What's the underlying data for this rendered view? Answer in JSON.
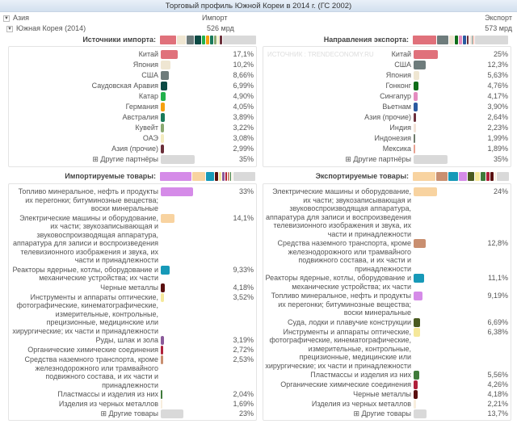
{
  "title": "Торговый профиль Южной Кореи в 2014 г. (ГС 2002)",
  "tree": {
    "region": "Азия",
    "country": "Южная Корея (2014)"
  },
  "import": {
    "header": "Импорт",
    "total": "526 мрд"
  },
  "export": {
    "header": "Экспорт",
    "total": "573 мрд"
  },
  "watermark": "ИСТОЧНИК : TRENDECONOMY.RU",
  "colors": {
    "other": "#d9d9d9"
  },
  "import_partners": {
    "title": "Источники импорта:",
    "rows": [
      {
        "label": "Китай",
        "pct": "17,1%",
        "value": 17.1,
        "color": "#e0717b"
      },
      {
        "label": "Япония",
        "pct": "10,2%",
        "value": 10.2,
        "color": "#efe6d2"
      },
      {
        "label": "США",
        "pct": "8,66%",
        "value": 8.66,
        "color": "#6e7c7c"
      },
      {
        "label": "Саудовская Аравия",
        "pct": "6,99%",
        "value": 6.99,
        "color": "#0b4a44"
      },
      {
        "label": "Катар",
        "pct": "4,90%",
        "value": 4.9,
        "color": "#22b14c"
      },
      {
        "label": "Германия",
        "pct": "4,05%",
        "value": 4.05,
        "color": "#f5a00f"
      },
      {
        "label": "Австралия",
        "pct": "3,89%",
        "value": 3.89,
        "color": "#1a7a5a"
      },
      {
        "label": "Кувейт",
        "pct": "3,22%",
        "value": 3.22,
        "color": "#8aa870"
      },
      {
        "label": "ОАЭ",
        "pct": "3,08%",
        "value": 3.08,
        "color": "#f3ebbf"
      },
      {
        "label": "Азия (прочие)",
        "pct": "2,99%",
        "value": 2.99,
        "color": "#6b2e3a"
      },
      {
        "label": "⊞ Другие партнёры",
        "pct": "35%",
        "value": 35,
        "color": "#d9d9d9"
      }
    ]
  },
  "export_partners": {
    "title": "Направления экспорта:",
    "rows": [
      {
        "label": "Китай",
        "pct": "25%",
        "value": 25,
        "color": "#e0717b"
      },
      {
        "label": "США",
        "pct": "12,3%",
        "value": 12.3,
        "color": "#6e7c7c"
      },
      {
        "label": "Япония",
        "pct": "5,63%",
        "value": 5.63,
        "color": "#efe6d2"
      },
      {
        "label": "Гонконг",
        "pct": "4,76%",
        "value": 4.76,
        "color": "#0f6e1a"
      },
      {
        "label": "Сингапур",
        "pct": "4,17%",
        "value": 4.17,
        "color": "#e48bbf"
      },
      {
        "label": "Вьетнам",
        "pct": "3,90%",
        "value": 3.9,
        "color": "#2a5aa0"
      },
      {
        "label": "Азия (прочие)",
        "pct": "2,64%",
        "value": 2.64,
        "color": "#6b2e3a"
      },
      {
        "label": "Индия",
        "pct": "2,23%",
        "value": 2.23,
        "color": "#f3e3d8"
      },
      {
        "label": "Индонезия",
        "pct": "1,99%",
        "value": 1.99,
        "color": "#6e7b6b"
      },
      {
        "label": "Мексика",
        "pct": "1,89%",
        "value": 1.89,
        "color": "#e8a090"
      },
      {
        "label": "⊞ Другие партнёры",
        "pct": "35%",
        "value": 35,
        "color": "#d9d9d9"
      }
    ]
  },
  "import_goods": {
    "title": "Импортируемые товары:",
    "rows": [
      {
        "label": "Топливо минеральное, нефть и продукты их перегонки; битуминозные вещества; воски минеральные",
        "pct": "33%",
        "value": 33,
        "color": "#d58be8"
      },
      {
        "label": "Электрические машины и оборудование, их части; звукозаписывающая и звуковоспроизводящая аппаратура, аппаратура для записи и воспроизведения телевизионного изображения и звука, их части и принадлежности",
        "pct": "14,1%",
        "value": 14.1,
        "color": "#f8d3a0"
      },
      {
        "label": "Реакторы ядерные, котлы, оборудование и механические устройства; их части",
        "pct": "9,33%",
        "value": 9.33,
        "color": "#1799b8"
      },
      {
        "label": "Черные металлы",
        "pct": "4,18%",
        "value": 4.18,
        "color": "#5a1010"
      },
      {
        "label": "Инструменты и аппараты оптические, фотографические, кинематографические, измерительные, контрольные, прецизионные, медицинские или хирургические; их части и принадлежности",
        "pct": "3,52%",
        "value": 3.52,
        "color": "#f5e89a"
      },
      {
        "label": "Руды, шлак и зола",
        "pct": "3,19%",
        "value": 3.19,
        "color": "#8a5a9a"
      },
      {
        "label": "Органические химические соединения",
        "pct": "2,72%",
        "value": 2.72,
        "color": "#b0203a"
      },
      {
        "label": "Средства наземного транспорта, кроме железнодорожного или трамвайного подвижного состава, и их части и принадлежности",
        "pct": "2,53%",
        "value": 2.53,
        "color": "#c98f70"
      },
      {
        "label": "Пластмассы и изделия из них",
        "pct": "2,04%",
        "value": 2.04,
        "color": "#3f7a3a"
      },
      {
        "label": "Изделия из черных металлов",
        "pct": "1,69%",
        "value": 1.69,
        "color": "#f8eedd"
      },
      {
        "label": "⊞ Другие товары",
        "pct": "23%",
        "value": 23,
        "color": "#d9d9d9"
      }
    ]
  },
  "export_goods": {
    "title": "Экспортируемые товары:",
    "rows": [
      {
        "label": "Электрические машины и оборудование, их части; звукозаписывающая и звуковоспроизводящая аппаратура, аппаратура для записи и воспроизведения телевизионного изображения и звука, их части и принадлежности",
        "pct": "24%",
        "value": 24,
        "color": "#f8d3a0"
      },
      {
        "label": "Средства наземного транспорта, кроме железнодорожного или трамвайного подвижного состава, и их части и принадлежности",
        "pct": "12,8%",
        "value": 12.8,
        "color": "#c98f70"
      },
      {
        "label": "Реакторы ядерные, котлы, оборудование и механические устройства; их части",
        "pct": "11,1%",
        "value": 11.1,
        "color": "#1799b8"
      },
      {
        "label": "Топливо минеральное, нефть и продукты их перегонки; битуминозные вещества; воски минеральные",
        "pct": "9,19%",
        "value": 9.19,
        "color": "#d58be8"
      },
      {
        "label": "Суда, лодки и плавучие конструкции",
        "pct": "6,69%",
        "value": 6.69,
        "color": "#4a5a20"
      },
      {
        "label": "Инструменты и аппараты оптические, фотографические, кинематографические, измерительные, контрольные, прецизионные, медицинские или хирургические; их части и принадлежности",
        "pct": "6,38%",
        "value": 6.38,
        "color": "#f5e89a"
      },
      {
        "label": "Пластмассы и изделия из них",
        "pct": "5,56%",
        "value": 5.56,
        "color": "#3f7a3a"
      },
      {
        "label": "Органические химические соединения",
        "pct": "4,26%",
        "value": 4.26,
        "color": "#b0203a"
      },
      {
        "label": "Черные металлы",
        "pct": "4,18%",
        "value": 4.18,
        "color": "#5a1010"
      },
      {
        "label": "Изделия из черных металлов",
        "pct": "2,21%",
        "value": 2.21,
        "color": "#f8eedd"
      },
      {
        "label": "⊞ Другие товары",
        "pct": "13,7%",
        "value": 13.7,
        "color": "#d9d9d9"
      }
    ]
  }
}
